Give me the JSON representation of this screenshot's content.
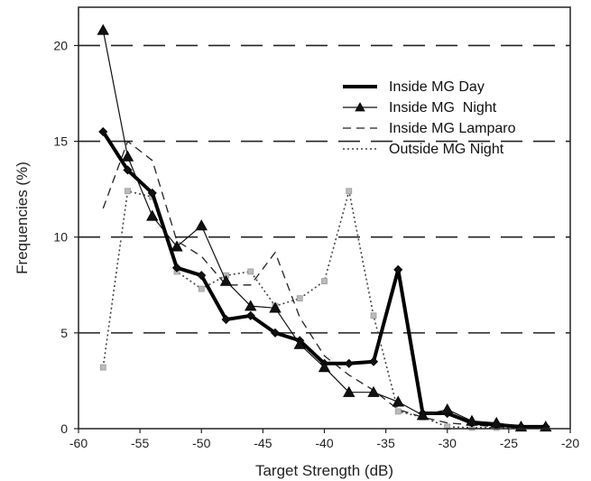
{
  "chart_data": {
    "type": "line",
    "title": "",
    "xlabel": "Target Strength (dB)",
    "ylabel": "Frequencies (%)",
    "xlim": [
      -60,
      -20
    ],
    "ylim": [
      0,
      22
    ],
    "x_ticks": [
      "-60",
      "-55",
      "-50",
      "-45",
      "-40",
      "-35",
      "-30",
      "-25",
      "-20"
    ],
    "y_ticks": [
      "0",
      "5",
      "10",
      "15",
      "20"
    ],
    "grid": "horizontal dashed",
    "legend_position": "top-right",
    "series": [
      {
        "name": "Inside MG Day",
        "style": "thick-solid",
        "x": [
          -58,
          -56,
          -54,
          -52,
          -50,
          -48,
          -46,
          -44,
          -42,
          -40,
          -38,
          -36,
          -34,
          -32,
          -30,
          -28,
          -26,
          -24,
          -22
        ],
        "values": [
          15.5,
          13.5,
          12.3,
          8.4,
          8.0,
          5.7,
          5.9,
          5.0,
          4.6,
          3.4,
          3.4,
          3.5,
          8.3,
          0.8,
          0.8,
          0.3,
          0.2,
          0.1,
          0.1
        ]
      },
      {
        "name": "Inside MG  Night",
        "style": "thin-solid-triangle",
        "x": [
          -58,
          -56,
          -54,
          -52,
          -50,
          -48,
          -46,
          -44,
          -42,
          -40,
          -38,
          -36,
          -34,
          -32,
          -30,
          -28,
          -26,
          -24,
          -22
        ],
        "values": [
          20.8,
          14.2,
          11.1,
          9.5,
          10.6,
          7.7,
          6.4,
          6.3,
          4.4,
          3.2,
          1.9,
          1.9,
          1.4,
          0.7,
          1.0,
          0.4,
          0.3,
          0.1,
          0.1
        ]
      },
      {
        "name": "Inside MG Lamparo",
        "style": "dashed",
        "x": [
          -58,
          -56,
          -54,
          -52,
          -50,
          -48,
          -46,
          -44,
          -42,
          -40,
          -38,
          -36,
          -34,
          -32,
          -30,
          -28,
          -26,
          -24,
          -22
        ],
        "values": [
          11.5,
          15.0,
          14.0,
          9.8,
          9.0,
          7.5,
          7.5,
          9.2,
          5.8,
          3.8,
          2.8,
          2.0,
          1.0,
          0.6,
          0.3,
          0.2,
          0.1,
          0.1,
          0.05
        ]
      },
      {
        "name": "Outside MG Night",
        "style": "dotted",
        "x": [
          -58,
          -56,
          -54,
          -52,
          -50,
          -48,
          -46,
          -44,
          -42,
          -40,
          -38,
          -36,
          -34,
          -32,
          -30,
          -28,
          -26,
          -24,
          -22
        ],
        "values": [
          3.2,
          12.4,
          12.1,
          8.2,
          7.3,
          8.0,
          8.2,
          6.4,
          6.8,
          7.7,
          12.4,
          5.9,
          0.9,
          0.6,
          0.1,
          0.05,
          0.05,
          0.05,
          0.05
        ]
      }
    ]
  }
}
